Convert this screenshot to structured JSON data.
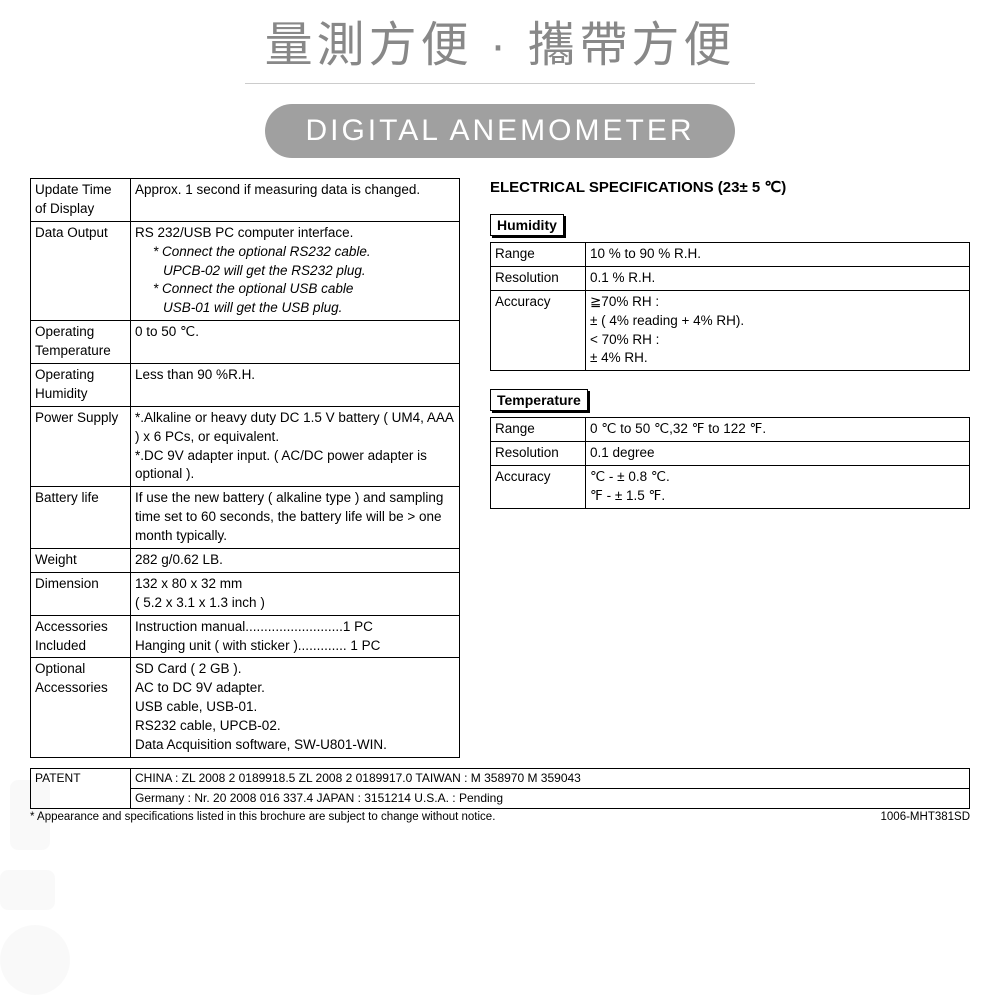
{
  "header": {
    "chinese_title": "量測方便 · 攜帶方便",
    "badge": "DIGITAL ANEMOMETER"
  },
  "general_specs": [
    {
      "label": "Update Time of Display",
      "value": "Approx. 1 second if measuring data is changed."
    },
    {
      "label": "Data Output",
      "value": "RS 232/USB PC computer interface.",
      "notes": [
        "* Connect the optional RS232 cable.",
        "UPCB-02 will get the RS232 plug.",
        "* Connect the optional USB cable",
        "USB-01 will get the USB plug."
      ]
    },
    {
      "label": "Operating Temperature",
      "value": "0 to 50 ℃."
    },
    {
      "label": "Operating Humidity",
      "value": "Less than 90 %R.H."
    },
    {
      "label": "Power Supply",
      "value": "*.Alkaline or heavy duty DC 1.5 V battery ( UM4, AAA ) x 6 PCs,  or equivalent.\n*.DC 9V adapter input. ( AC/DC power adapter is optional )."
    },
    {
      "label": "Battery life",
      "value": "If use the new battery ( alkaline type ) and sampling time set to 60 seconds, the battery life will be >  one month typically."
    },
    {
      "label": "Weight",
      "value": "282 g/0.62 LB."
    },
    {
      "label": "Dimension",
      "value": "132 x 80 x 32 mm\n( 5.2 x 3.1 x 1.3 inch )"
    },
    {
      "label": "Accessories Included",
      "value": "Instruction manual..........................1 PC\nHanging unit ( with sticker )............. 1 PC"
    },
    {
      "label": "Optional Accessories",
      "value": "SD Card ( 2 GB ).\nAC to DC 9V adapter.\nUSB cable, USB-01.\nRS232 cable, UPCB-02.\nData Acquisition software, SW-U801-WIN."
    }
  ],
  "electrical": {
    "title": "ELECTRICAL SPECIFICATIONS  (23± 5 ℃)",
    "humidity": {
      "heading": "Humidity",
      "rows": [
        {
          "label": "Range",
          "value": "10 % to 90 % R.H."
        },
        {
          "label": "Resolution",
          "value": "0.1 % R.H."
        },
        {
          "label": "Accuracy",
          "value": "≧70% RH :\n     ± ( 4% reading + 4% RH).\n< 70% RH :\n     ± 4% RH."
        }
      ]
    },
    "temperature": {
      "heading": "Temperature",
      "rows": [
        {
          "label": "Range",
          "value": "0 ℃ to 50 ℃,32 ℉ to 122 ℉."
        },
        {
          "label": "Resolution",
          "value": "0.1 degree"
        },
        {
          "label": "Accuracy",
          "value": "℃ - ± 0.8 ℃.\n℉ - ± 1.5 ℉."
        }
      ]
    }
  },
  "patent": {
    "label": "PATENT",
    "line1": "CHINA : ZL 2008 2 0189918.5  ZL 2008 2 0189917.0              TAIWAN : M 358970  M 359043",
    "line2": "Germany : Nr. 20 2008 016 337.4               JAPAN : 3151214      U.S.A. : Pending"
  },
  "footer": {
    "note": "* Appearance and specifications listed in this brochure are subject to change without notice.",
    "code": "1006-MHT381SD"
  },
  "colors": {
    "badge_bg": "#a0a0a0",
    "title_color": "#888888",
    "border": "#000000"
  }
}
